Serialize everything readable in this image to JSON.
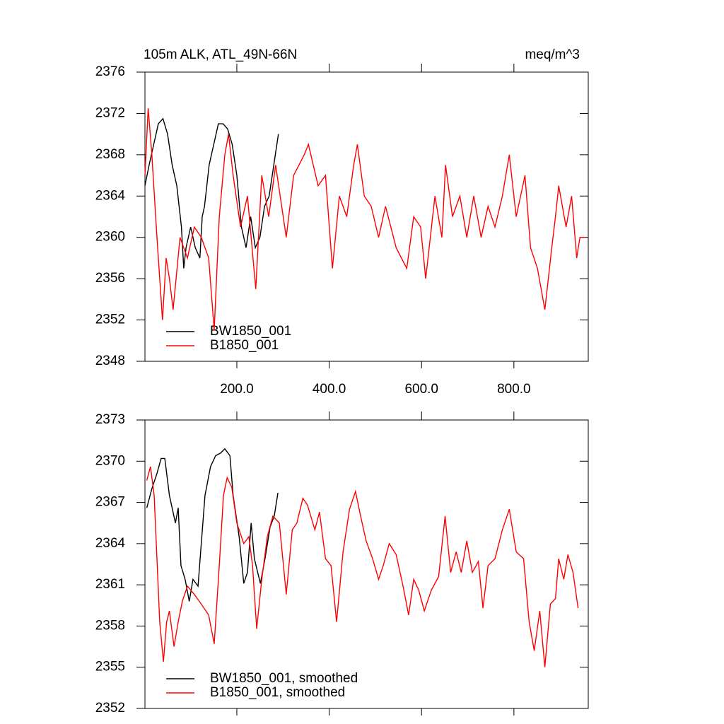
{
  "chart_data": [
    {
      "type": "line",
      "title": "105m ALK, ATL_49N-66N",
      "units": "meq/m^3",
      "xlim": [
        1,
        961
      ],
      "xticks": [
        {
          "value": 200,
          "label": "200.0"
        },
        {
          "value": 400,
          "label": "400.0"
        },
        {
          "value": 600,
          "label": "600.0"
        },
        {
          "value": 800,
          "label": "800.0"
        }
      ],
      "show_xtick_labels": true,
      "ylim": [
        2348,
        2376
      ],
      "yticks": [
        2348,
        2352,
        2356,
        2360,
        2364,
        2368,
        2372,
        2376
      ],
      "legend": "lower left",
      "series": [
        {
          "name": "BW1850_001",
          "color": "#000000",
          "x": [
            1,
            10,
            20,
            30,
            40,
            50,
            60,
            70,
            80,
            85,
            90,
            100,
            110,
            120,
            125,
            130,
            140,
            150,
            160,
            170,
            180,
            190,
            200,
            210,
            220,
            230,
            240,
            250,
            260,
            270,
            280,
            290
          ],
          "values": [
            2365,
            2367,
            2369,
            2371,
            2371.5,
            2370,
            2367,
            2365,
            2361,
            2357,
            2359,
            2361,
            2359,
            2358,
            2362,
            2363,
            2367,
            2369,
            2371,
            2371,
            2370.5,
            2369,
            2366,
            2361,
            2359,
            2362,
            2359,
            2360,
            2363,
            2364,
            2367,
            2370
          ]
        },
        {
          "name": "B1850_001",
          "color": "#ff0000",
          "x": [
            1,
            8,
            16,
            27,
            39,
            47,
            54,
            62,
            77,
            93,
            108,
            123,
            139,
            151,
            162,
            174,
            182,
            192,
            208,
            223,
            241,
            254,
            269,
            284,
            307,
            323,
            346,
            355,
            376,
            392,
            407,
            422,
            438,
            453,
            461,
            476,
            491,
            507,
            522,
            545,
            568,
            583,
            598,
            609,
            629,
            644,
            652,
            667,
            683,
            698,
            713,
            729,
            744,
            759,
            775,
            790,
            805,
            824,
            836,
            851,
            867,
            882,
            890,
            897,
            913,
            925,
            936,
            943,
            954
          ],
          "values": [
            2366,
            2372.5,
            2368,
            2360,
            2352,
            2358,
            2356,
            2353,
            2360,
            2358,
            2361,
            2360,
            2358,
            2351,
            2362,
            2368,
            2370,
            2366,
            2361,
            2364,
            2355,
            2366,
            2362,
            2367,
            2360,
            2366,
            2368,
            2369,
            2365,
            2366,
            2357,
            2364,
            2362,
            2367,
            2369,
            2364,
            2363,
            2360,
            2363,
            2359,
            2357,
            2362,
            2361,
            2356,
            2364,
            2360,
            2367,
            2362,
            2364,
            2360,
            2364,
            2360,
            2363,
            2361,
            2364,
            2368,
            2362,
            2366,
            2359,
            2357,
            2353,
            2359,
            2362,
            2365,
            2361,
            2364,
            2358,
            2360,
            2360
          ]
        }
      ]
    },
    {
      "type": "line",
      "xlim": [
        1,
        961
      ],
      "xticks": [
        200,
        400,
        600,
        800
      ],
      "show_xtick_labels": false,
      "ylim": [
        2352,
        2373
      ],
      "yticks": [
        2352,
        2355,
        2358,
        2361,
        2364,
        2367,
        2370,
        2373
      ],
      "legend": "lower left",
      "series": [
        {
          "name": "BW1850_001, smoothed",
          "color": "#000000",
          "x": [
            5,
            16,
            27,
            36,
            44,
            54,
            67,
            73,
            79,
            88,
            97,
            105,
            116,
            123,
            131,
            143,
            154,
            165,
            174,
            185,
            192,
            205,
            215,
            223,
            231,
            238,
            251,
            261,
            272,
            281,
            289
          ],
          "values": [
            2366.6,
            2368,
            2369.1,
            2370.2,
            2370.2,
            2367.5,
            2365.5,
            2366.6,
            2362.4,
            2361.4,
            2359.8,
            2361.4,
            2360.9,
            2364,
            2367.5,
            2369.6,
            2370.4,
            2370.6,
            2370.9,
            2370.4,
            2367.5,
            2364.5,
            2361.1,
            2361.9,
            2365.5,
            2362.9,
            2361.1,
            2362.9,
            2365.2,
            2366,
            2367.7
          ]
        },
        {
          "name": "B1850_001, smoothed",
          "color": "#ff0000",
          "x": [
            5,
            13,
            21,
            27,
            33,
            41,
            48,
            54,
            64,
            73,
            82,
            93,
            108,
            123,
            139,
            151,
            162,
            171,
            179,
            189,
            200,
            215,
            226,
            234,
            243,
            254,
            266,
            278,
            292,
            307,
            320,
            330,
            343,
            353,
            369,
            379,
            392,
            404,
            416,
            430,
            444,
            457,
            468,
            480,
            494,
            507,
            517,
            530,
            545,
            560,
            572,
            583,
            594,
            606,
            621,
            637,
            651,
            663,
            675,
            686,
            698,
            710,
            723,
            733,
            744,
            759,
            775,
            790,
            805,
            821,
            833,
            844,
            856,
            867,
            879,
            890,
            897,
            908,
            917,
            928,
            939
          ],
          "values": [
            2368.6,
            2369.6,
            2367.5,
            2362.9,
            2358.3,
            2355.4,
            2358.3,
            2359.1,
            2356.5,
            2358.3,
            2359.8,
            2360.9,
            2360.3,
            2359.6,
            2358.8,
            2356.7,
            2362.4,
            2367.5,
            2368.8,
            2368.1,
            2365.5,
            2364,
            2364.5,
            2362.4,
            2357.8,
            2361.4,
            2364.5,
            2366,
            2365.5,
            2360.3,
            2365,
            2365.5,
            2367.3,
            2366.8,
            2365,
            2366.3,
            2362.9,
            2362.4,
            2358.3,
            2363.4,
            2366.5,
            2367.8,
            2366,
            2364.2,
            2362.9,
            2361.4,
            2362.4,
            2364,
            2363.2,
            2360.9,
            2358.8,
            2361.4,
            2360.6,
            2359.1,
            2360.6,
            2361.6,
            2366,
            2361.9,
            2363.4,
            2361.9,
            2364.2,
            2361.9,
            2362.7,
            2359.3,
            2362.4,
            2362.9,
            2365,
            2366.5,
            2363.4,
            2362.9,
            2358.3,
            2356.2,
            2359.1,
            2355,
            2359.6,
            2360,
            2362.9,
            2361.4,
            2363.2,
            2361.9,
            2359.3
          ]
        }
      ]
    }
  ]
}
